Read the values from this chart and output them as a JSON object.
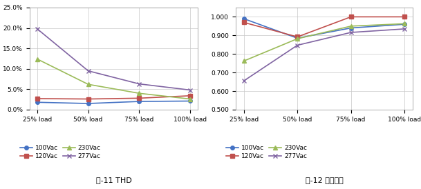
{
  "categories": [
    "25% load",
    "50% load",
    "75% load",
    "100% load"
  ],
  "thd": {
    "100Vac": [
      0.018,
      0.015,
      0.02,
      0.021
    ],
    "120Vac": [
      0.027,
      0.026,
      0.028,
      0.034
    ],
    "230Vac": [
      0.124,
      0.062,
      0.04,
      0.026
    ],
    "277Vac": [
      0.198,
      0.095,
      0.063,
      0.048
    ]
  },
  "pf": {
    "100Vac": [
      0.99,
      0.885,
      0.94,
      0.96
    ],
    "120Vac": [
      0.97,
      0.892,
      1.0,
      1.0
    ],
    "230Vac": [
      0.762,
      0.882,
      0.95,
      0.963
    ],
    "277Vac": [
      0.655,
      0.847,
      0.916,
      0.935
    ]
  },
  "colors": {
    "100Vac": "#4472C4",
    "120Vac": "#C0504D",
    "230Vac": "#9BBB59",
    "277Vac": "#8064A2"
  },
  "markers": {
    "100Vac": "o",
    "120Vac": "s",
    "230Vac": "^",
    "277Vac": "x"
  },
  "thd_title": "图-11 THD",
  "pf_title": "图-12 功率因数",
  "thd_ylim": [
    0.0,
    0.25
  ],
  "thd_yticks": [
    0.0,
    0.05,
    0.1,
    0.15,
    0.2,
    0.25
  ],
  "pf_ylim": [
    0.5,
    1.05
  ],
  "pf_yticks": [
    0.5,
    0.6,
    0.7,
    0.8,
    0.9,
    1.0
  ],
  "background_color": "#FFFFFF",
  "plot_bg_color": "#FFFFFF",
  "grid_color": "#C8C8C8",
  "linewidth": 1.2,
  "markersize": 4
}
